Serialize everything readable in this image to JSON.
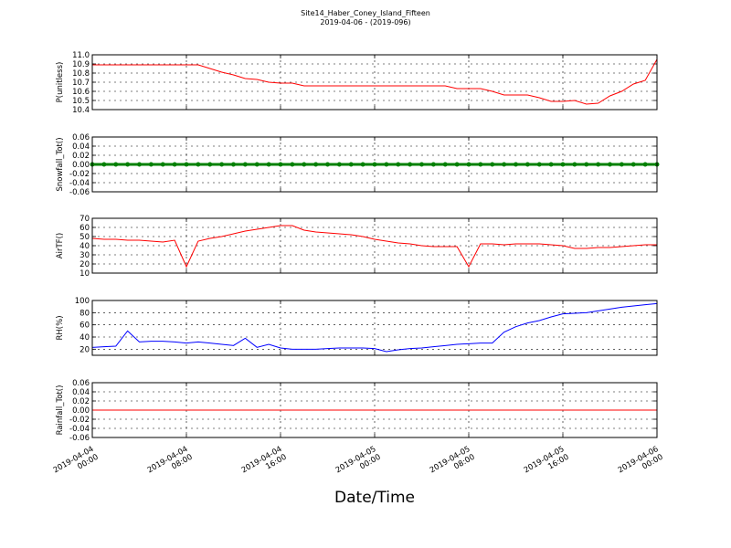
{
  "chart_data": {
    "type": "line",
    "title": "Site14_Haber_Coney_Island_Fifteen",
    "subtitle": "2019-04-06 - (2019-096)",
    "xlabel": "Date/Time",
    "grid": true,
    "xlim": [
      "2019-04-04 00:00",
      "2019-04-06 00:00"
    ],
    "xticks": [
      "2019-04-04 00:00",
      "2019-04-04 08:00",
      "2019-04-04 16:00",
      "2019-04-05 00:00",
      "2019-04-05 08:00",
      "2019-04-05 16:00",
      "2019-04-06 00:00"
    ],
    "x": [
      "2019-04-04 00:00",
      "2019-04-04 01:00",
      "2019-04-04 02:00",
      "2019-04-04 03:00",
      "2019-04-04 04:00",
      "2019-04-04 05:00",
      "2019-04-04 06:00",
      "2019-04-04 07:00",
      "2019-04-04 08:00",
      "2019-04-04 09:00",
      "2019-04-04 10:00",
      "2019-04-04 11:00",
      "2019-04-04 12:00",
      "2019-04-04 13:00",
      "2019-04-04 14:00",
      "2019-04-04 15:00",
      "2019-04-04 16:00",
      "2019-04-04 17:00",
      "2019-04-04 18:00",
      "2019-04-04 19:00",
      "2019-04-04 20:00",
      "2019-04-04 21:00",
      "2019-04-04 22:00",
      "2019-04-04 23:00",
      "2019-04-05 00:00",
      "2019-04-05 01:00",
      "2019-04-05 02:00",
      "2019-04-05 03:00",
      "2019-04-05 04:00",
      "2019-04-05 05:00",
      "2019-04-05 06:00",
      "2019-04-05 07:00",
      "2019-04-05 08:00",
      "2019-04-05 09:00",
      "2019-04-05 10:00",
      "2019-04-05 11:00",
      "2019-04-05 12:00",
      "2019-04-05 13:00",
      "2019-04-05 14:00",
      "2019-04-05 15:00",
      "2019-04-05 16:00",
      "2019-04-05 17:00",
      "2019-04-05 18:00",
      "2019-04-05 19:00",
      "2019-04-05 20:00",
      "2019-04-05 21:00",
      "2019-04-05 22:00",
      "2019-04-05 23:00",
      "2019-04-06 00:00"
    ],
    "panels": [
      {
        "ylabel": "P(unitless)",
        "ylim": [
          10.4,
          11.0
        ],
        "yticks": [
          10.4,
          10.5,
          10.6,
          10.7,
          10.8,
          10.9,
          {
            "value": 11.0,
            "label": "11.0"
          }
        ],
        "series": [
          {
            "color": "#ff0000",
            "values": [
              10.89,
              10.89,
              10.89,
              10.89,
              10.89,
              10.89,
              10.89,
              10.89,
              10.89,
              10.89,
              10.85,
              10.81,
              10.78,
              10.74,
              10.73,
              10.7,
              10.69,
              10.69,
              10.66,
              10.66,
              10.66,
              10.66,
              10.66,
              10.66,
              10.66,
              10.66,
              10.66,
              10.66,
              10.66,
              10.66,
              10.66,
              10.63,
              10.63,
              10.63,
              10.6,
              10.56,
              10.56,
              10.56,
              10.53,
              10.49,
              10.49,
              10.5,
              10.46,
              10.47,
              10.55,
              10.6,
              10.68,
              10.72,
              10.95
            ]
          }
        ]
      },
      {
        "ylabel": "Snowfall_Tot()",
        "ylim": [
          -0.06,
          0.06
        ],
        "yticks": [
          -0.06,
          -0.04,
          -0.02,
          {
            "value": 0,
            "label": "0.00"
          },
          0.02,
          0.04,
          0.06
        ],
        "series": [
          {
            "color": "#008000",
            "marker": "o",
            "values": [
              0,
              0,
              0,
              0,
              0,
              0,
              0,
              0,
              0,
              0,
              0,
              0,
              0,
              0,
              0,
              0,
              0,
              0,
              0,
              0,
              0,
              0,
              0,
              0,
              0,
              0,
              0,
              0,
              0,
              0,
              0,
              0,
              0,
              0,
              0,
              0,
              0,
              0,
              0,
              0,
              0,
              0,
              0,
              0,
              0,
              0,
              0,
              0,
              0
            ]
          }
        ]
      },
      {
        "ylabel": "AirTF()",
        "ylim": [
          10,
          70
        ],
        "yticks": [
          10,
          20,
          30,
          40,
          50,
          60,
          70
        ],
        "series": [
          {
            "color": "#ff0000",
            "values": [
              48,
              47,
              47,
              46,
              46,
              45,
              44,
              46,
              17,
              45,
              48,
              50,
              53,
              56,
              58,
              60,
              62,
              62,
              57,
              55,
              54,
              53,
              52,
              50,
              47,
              45,
              43,
              42,
              40,
              39,
              39,
              39,
              17,
              42,
              42,
              41,
              42,
              42,
              42,
              41,
              40,
              37,
              37,
              38,
              38,
              39,
              40,
              41,
              41
            ]
          }
        ]
      },
      {
        "ylabel": "RH(%)",
        "ylim": [
          10,
          100
        ],
        "yticks": [
          20,
          40,
          60,
          80,
          100
        ],
        "series": [
          {
            "color": "#0000ff",
            "values": [
              23,
              24,
              25,
              50,
              32,
              33,
              33,
              32,
              30,
              32,
              30,
              28,
              26,
              38,
              23,
              28,
              22,
              20,
              20,
              20,
              21,
              22,
              22,
              22,
              21,
              16,
              19,
              21,
              22,
              24,
              26,
              28,
              29,
              30,
              30,
              48,
              57,
              63,
              67,
              73,
              78,
              79,
              80,
              83,
              86,
              89,
              91,
              93,
              95
            ]
          }
        ]
      },
      {
        "ylabel": "Rainfall_Tot()",
        "ylim": [
          -0.06,
          0.06
        ],
        "yticks": [
          -0.06,
          -0.04,
          -0.02,
          {
            "value": 0,
            "label": "0.00"
          },
          0.02,
          0.04,
          0.06
        ],
        "series": [
          {
            "color": "#ff0000",
            "values": [
              0,
              0,
              0,
              0,
              0,
              0,
              0,
              0,
              0,
              0,
              0,
              0,
              0,
              0,
              0,
              0,
              0,
              0,
              0,
              0,
              0,
              0,
              0,
              0,
              0,
              0,
              0,
              0,
              0,
              0,
              0,
              0,
              0,
              0,
              0,
              0,
              0,
              0,
              0,
              0,
              0,
              0,
              0,
              0,
              0,
              0,
              0,
              0,
              0
            ]
          }
        ]
      }
    ]
  }
}
